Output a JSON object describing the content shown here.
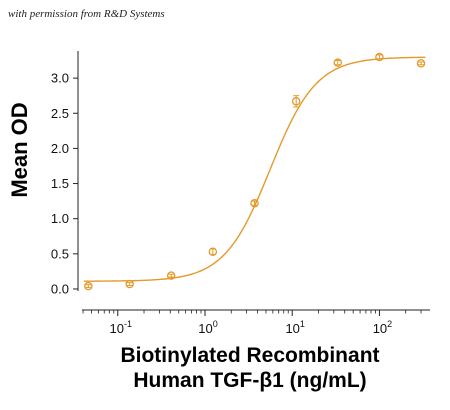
{
  "caption": "with permission from R&D Systems",
  "chart_data": {
    "type": "scatter",
    "title": "",
    "xlabel_line1": "Biotinylated Recombinant",
    "xlabel_line2": "Human TGF-β1 (ng/mL)",
    "ylabel": "Mean OD",
    "xscale": "log",
    "xlim": [
      0.035,
      380
    ],
    "ylim": [
      -0.1,
      3.4
    ],
    "x_ticks": [
      {
        "value": 0.1,
        "base": "10",
        "exp": "-1"
      },
      {
        "value": 1,
        "base": "10",
        "exp": "0"
      },
      {
        "value": 10,
        "base": "10",
        "exp": "1"
      },
      {
        "value": 100,
        "base": "10",
        "exp": "2"
      }
    ],
    "y_ticks": [
      "0.0",
      "0.5",
      "1.0",
      "1.5",
      "2.0",
      "2.5",
      "3.0"
    ],
    "color": "#E39A2B",
    "series": [
      {
        "x": [
          0.046,
          0.137,
          0.41,
          1.23,
          3.7,
          11.1,
          33.3,
          100,
          300
        ],
        "y": [
          0.04,
          0.07,
          0.19,
          0.53,
          1.22,
          2.67,
          3.22,
          3.3,
          3.21
        ],
        "err": [
          0.02,
          0.02,
          0.02,
          0.04,
          0.03,
          0.08,
          0.03,
          0.03,
          0.02
        ]
      }
    ],
    "fit": {
      "bottom": 0.11,
      "top": 3.3,
      "ec50": 5.6,
      "hill": 1.65
    }
  }
}
